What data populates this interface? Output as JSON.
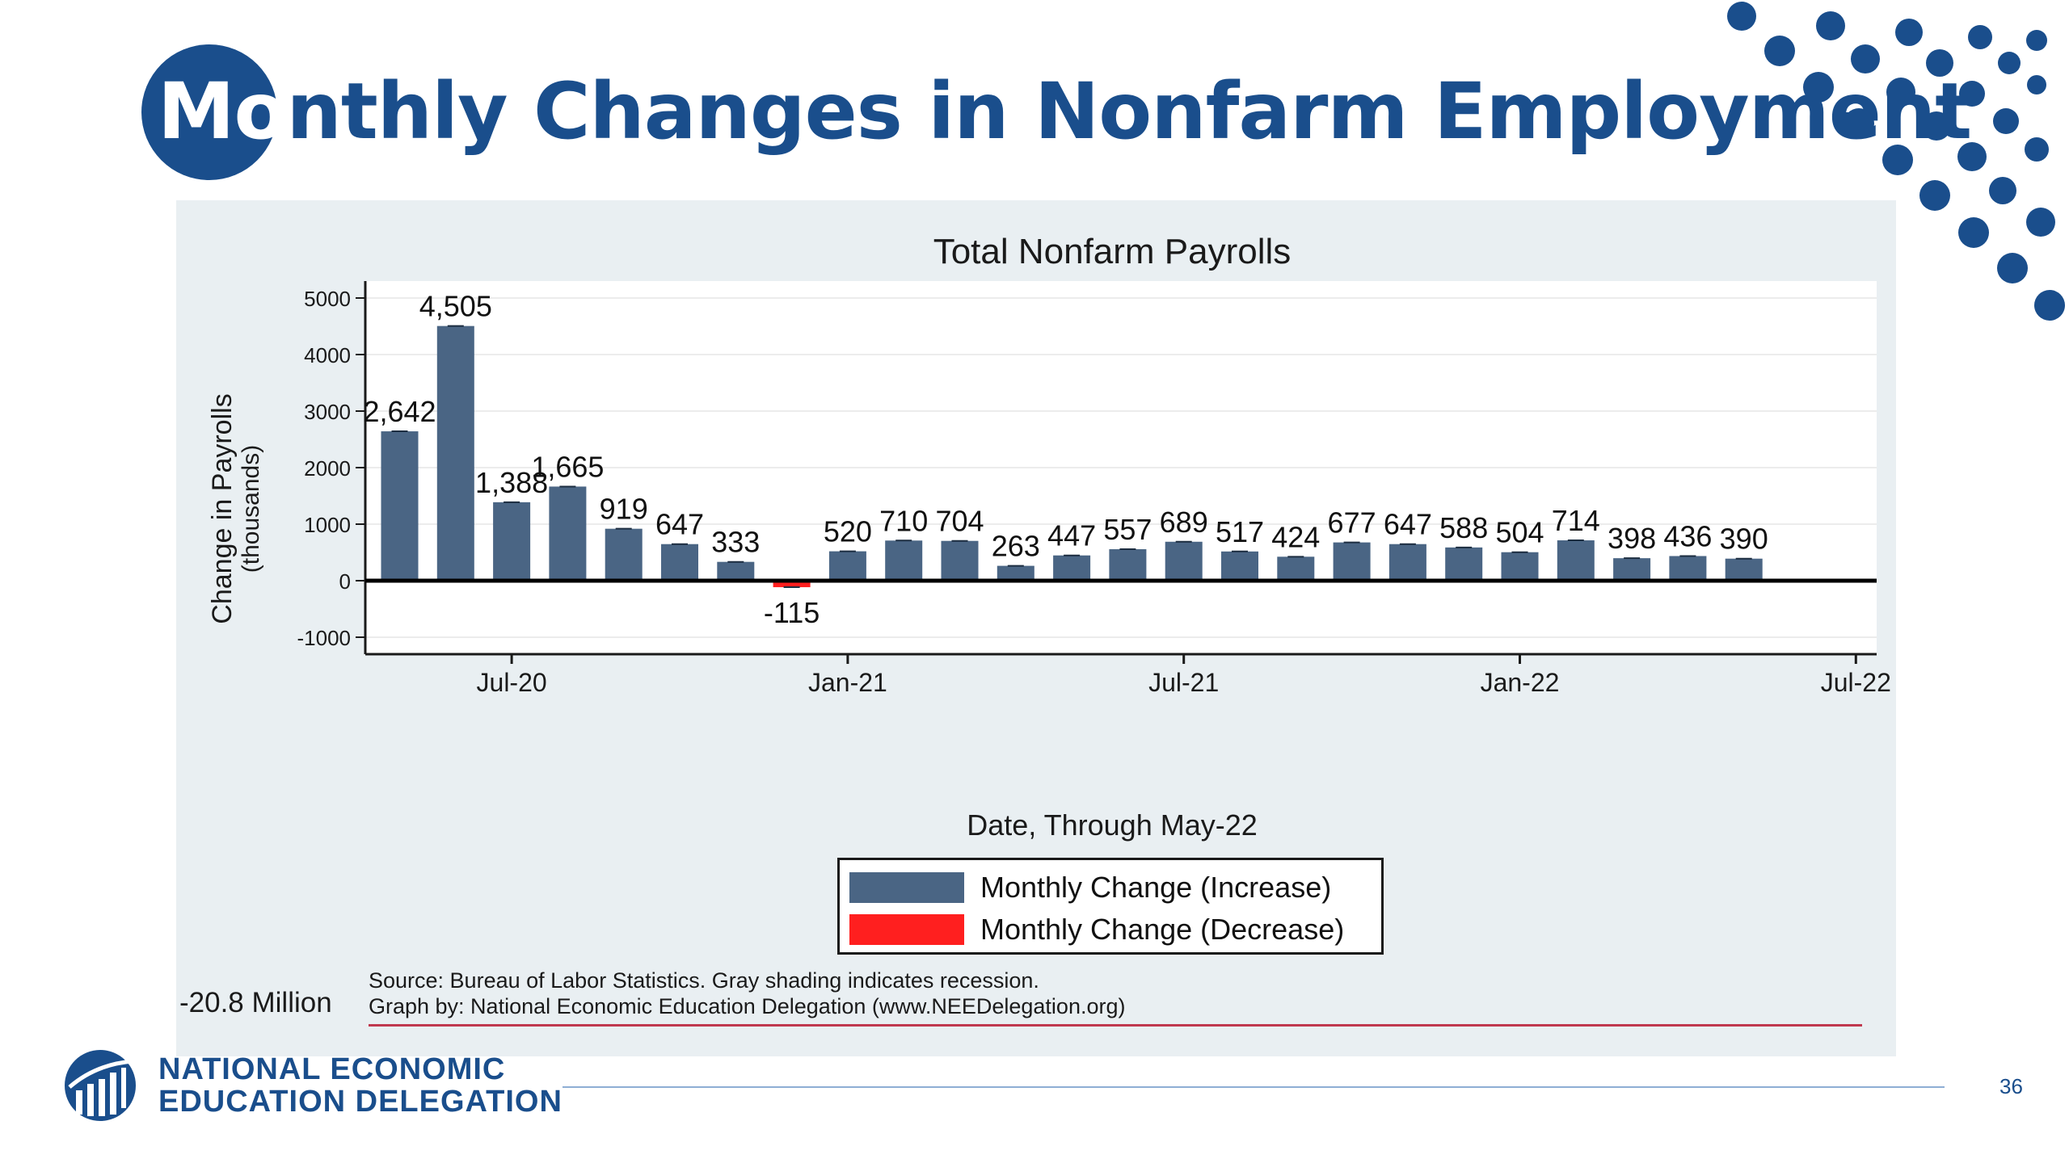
{
  "slide": {
    "title_first": "Mo",
    "title_rest": "nthly Changes in Nonfarm Employment",
    "side_note": "-20.8 Million",
    "source_line1": "Source: Bureau of Labor Statistics. Gray shading indicates recession.",
    "source_line2": "Graph by: National Economic Education Delegation (www.NEEDelegation.org)",
    "org_line1": "NATIONAL ECONOMIC",
    "org_line2": "EDUCATION DELEGATION",
    "page_number": "36"
  },
  "colors": {
    "brand_blue": "#1a4e8c",
    "increase_bar": "#4a6584",
    "decrease_bar": "#ff1f1f",
    "panel_bg": "#e9eff2"
  },
  "chart_data": {
    "type": "bar",
    "title": "Total Nonfarm Payrolls",
    "xlabel": "Date, Through May-22",
    "ylabel_line1": "Change in Payrolls",
    "ylabel_line2": "(thousands)",
    "ylim": [
      -1300,
      5300
    ],
    "yticks": [
      -1000,
      0,
      1000,
      2000,
      3000,
      4000,
      5000
    ],
    "xticks": [
      "Jul-20",
      "Jan-21",
      "Jul-21",
      "Jan-22",
      "Jul-22"
    ],
    "grid": true,
    "legend_position": "bottom-center",
    "categories": [
      "May-20",
      "Jun-20",
      "Jul-20",
      "Aug-20",
      "Sep-20",
      "Oct-20",
      "Nov-20",
      "Dec-20",
      "Jan-21",
      "Feb-21",
      "Mar-21",
      "Apr-21",
      "May-21",
      "Jun-21",
      "Jul-21",
      "Aug-21",
      "Sep-21",
      "Oct-21",
      "Nov-21",
      "Dec-21",
      "Jan-22",
      "Feb-22",
      "Mar-22",
      "Apr-22",
      "May-22"
    ],
    "values": [
      2642,
      4505,
      1388,
      1665,
      919,
      647,
      333,
      -115,
      520,
      710,
      704,
      263,
      447,
      557,
      689,
      517,
      424,
      677,
      647,
      588,
      504,
      714,
      398,
      436,
      390
    ],
    "data_labels": [
      "2,642",
      "4,505",
      "1,388",
      "1,665",
      "919",
      "647",
      "333",
      "-115",
      "520",
      "710",
      "704",
      "263",
      "447",
      "557",
      "689",
      "517",
      "424",
      "677",
      "647",
      "588",
      "504",
      "714",
      "398",
      "436",
      "390"
    ],
    "series": [
      {
        "name": "Monthly Change (Increase)",
        "color": "#4a6584"
      },
      {
        "name": "Monthly Change (Decrease)",
        "color": "#ff1f1f"
      }
    ]
  }
}
